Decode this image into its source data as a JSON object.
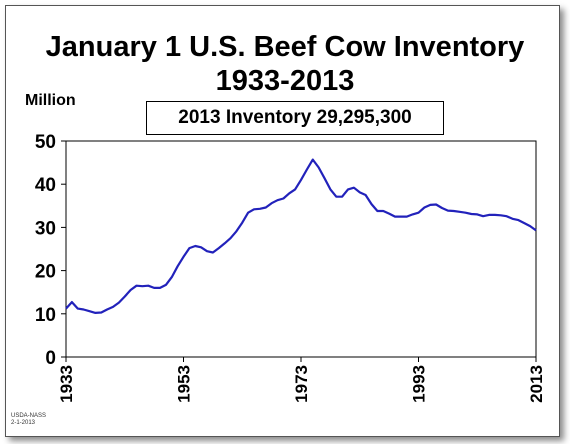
{
  "chart_data": {
    "type": "line",
    "title": "January 1 U.S. Beef Cow Inventory",
    "subtitle": "1933-2013",
    "ylabel": "Million",
    "annotation": "2013 Inventory 29,295,300",
    "xlim": [
      1933,
      2013
    ],
    "ylim": [
      0,
      50
    ],
    "yticks": [
      0,
      10,
      20,
      30,
      40,
      50
    ],
    "xticks": [
      1933,
      1953,
      1973,
      1993,
      2013
    ],
    "grid": false,
    "line_color": "#2222bb",
    "series": [
      {
        "x": [
          1933,
          1934,
          1935,
          1936,
          1937,
          1938,
          1939,
          1940,
          1941,
          1942,
          1943,
          1944,
          1945,
          1946,
          1947,
          1948,
          1949,
          1950,
          1951,
          1952,
          1953,
          1954,
          1955,
          1956,
          1957,
          1958,
          1959,
          1960,
          1961,
          1962,
          1963,
          1964,
          1965,
          1966,
          1967,
          1968,
          1969,
          1970,
          1971,
          1972,
          1973,
          1974,
          1975,
          1976,
          1977,
          1978,
          1979,
          1980,
          1981,
          1982,
          1983,
          1984,
          1985,
          1986,
          1987,
          1988,
          1989,
          1990,
          1991,
          1992,
          1993,
          1994,
          1995,
          1996,
          1997,
          1998,
          1999,
          2000,
          2001,
          2002,
          2003,
          2004,
          2005,
          2006,
          2007,
          2008,
          2009,
          2010,
          2011,
          2012,
          2013
        ],
        "values": [
          11.2,
          12.7,
          11.2,
          11.0,
          10.6,
          10.2,
          10.3,
          11.0,
          11.6,
          12.6,
          14.0,
          15.5,
          16.5,
          16.4,
          16.5,
          16.0,
          16.0,
          16.7,
          18.5,
          21.0,
          23.2,
          25.2,
          25.7,
          25.4,
          24.5,
          24.2,
          25.2,
          26.3,
          27.5,
          29.1,
          31.1,
          33.4,
          34.2,
          34.3,
          34.6,
          35.6,
          36.3,
          36.7,
          37.9,
          38.8,
          41.0,
          43.4,
          45.7,
          43.9,
          41.4,
          38.8,
          37.1,
          37.1,
          38.8,
          39.2,
          38.1,
          37.5,
          35.4,
          33.8,
          33.8,
          33.2,
          32.5,
          32.5,
          32.5,
          33.0,
          33.4,
          34.6,
          35.2,
          35.3,
          34.5,
          33.9,
          33.8,
          33.6,
          33.4,
          33.1,
          33.0,
          32.6,
          32.9,
          32.9,
          32.8,
          32.6,
          32.0,
          31.7,
          31.0,
          30.3,
          29.3
        ]
      }
    ]
  },
  "footer": {
    "source_line1": "USDA-NASS",
    "source_line2": "2-1-2013"
  }
}
